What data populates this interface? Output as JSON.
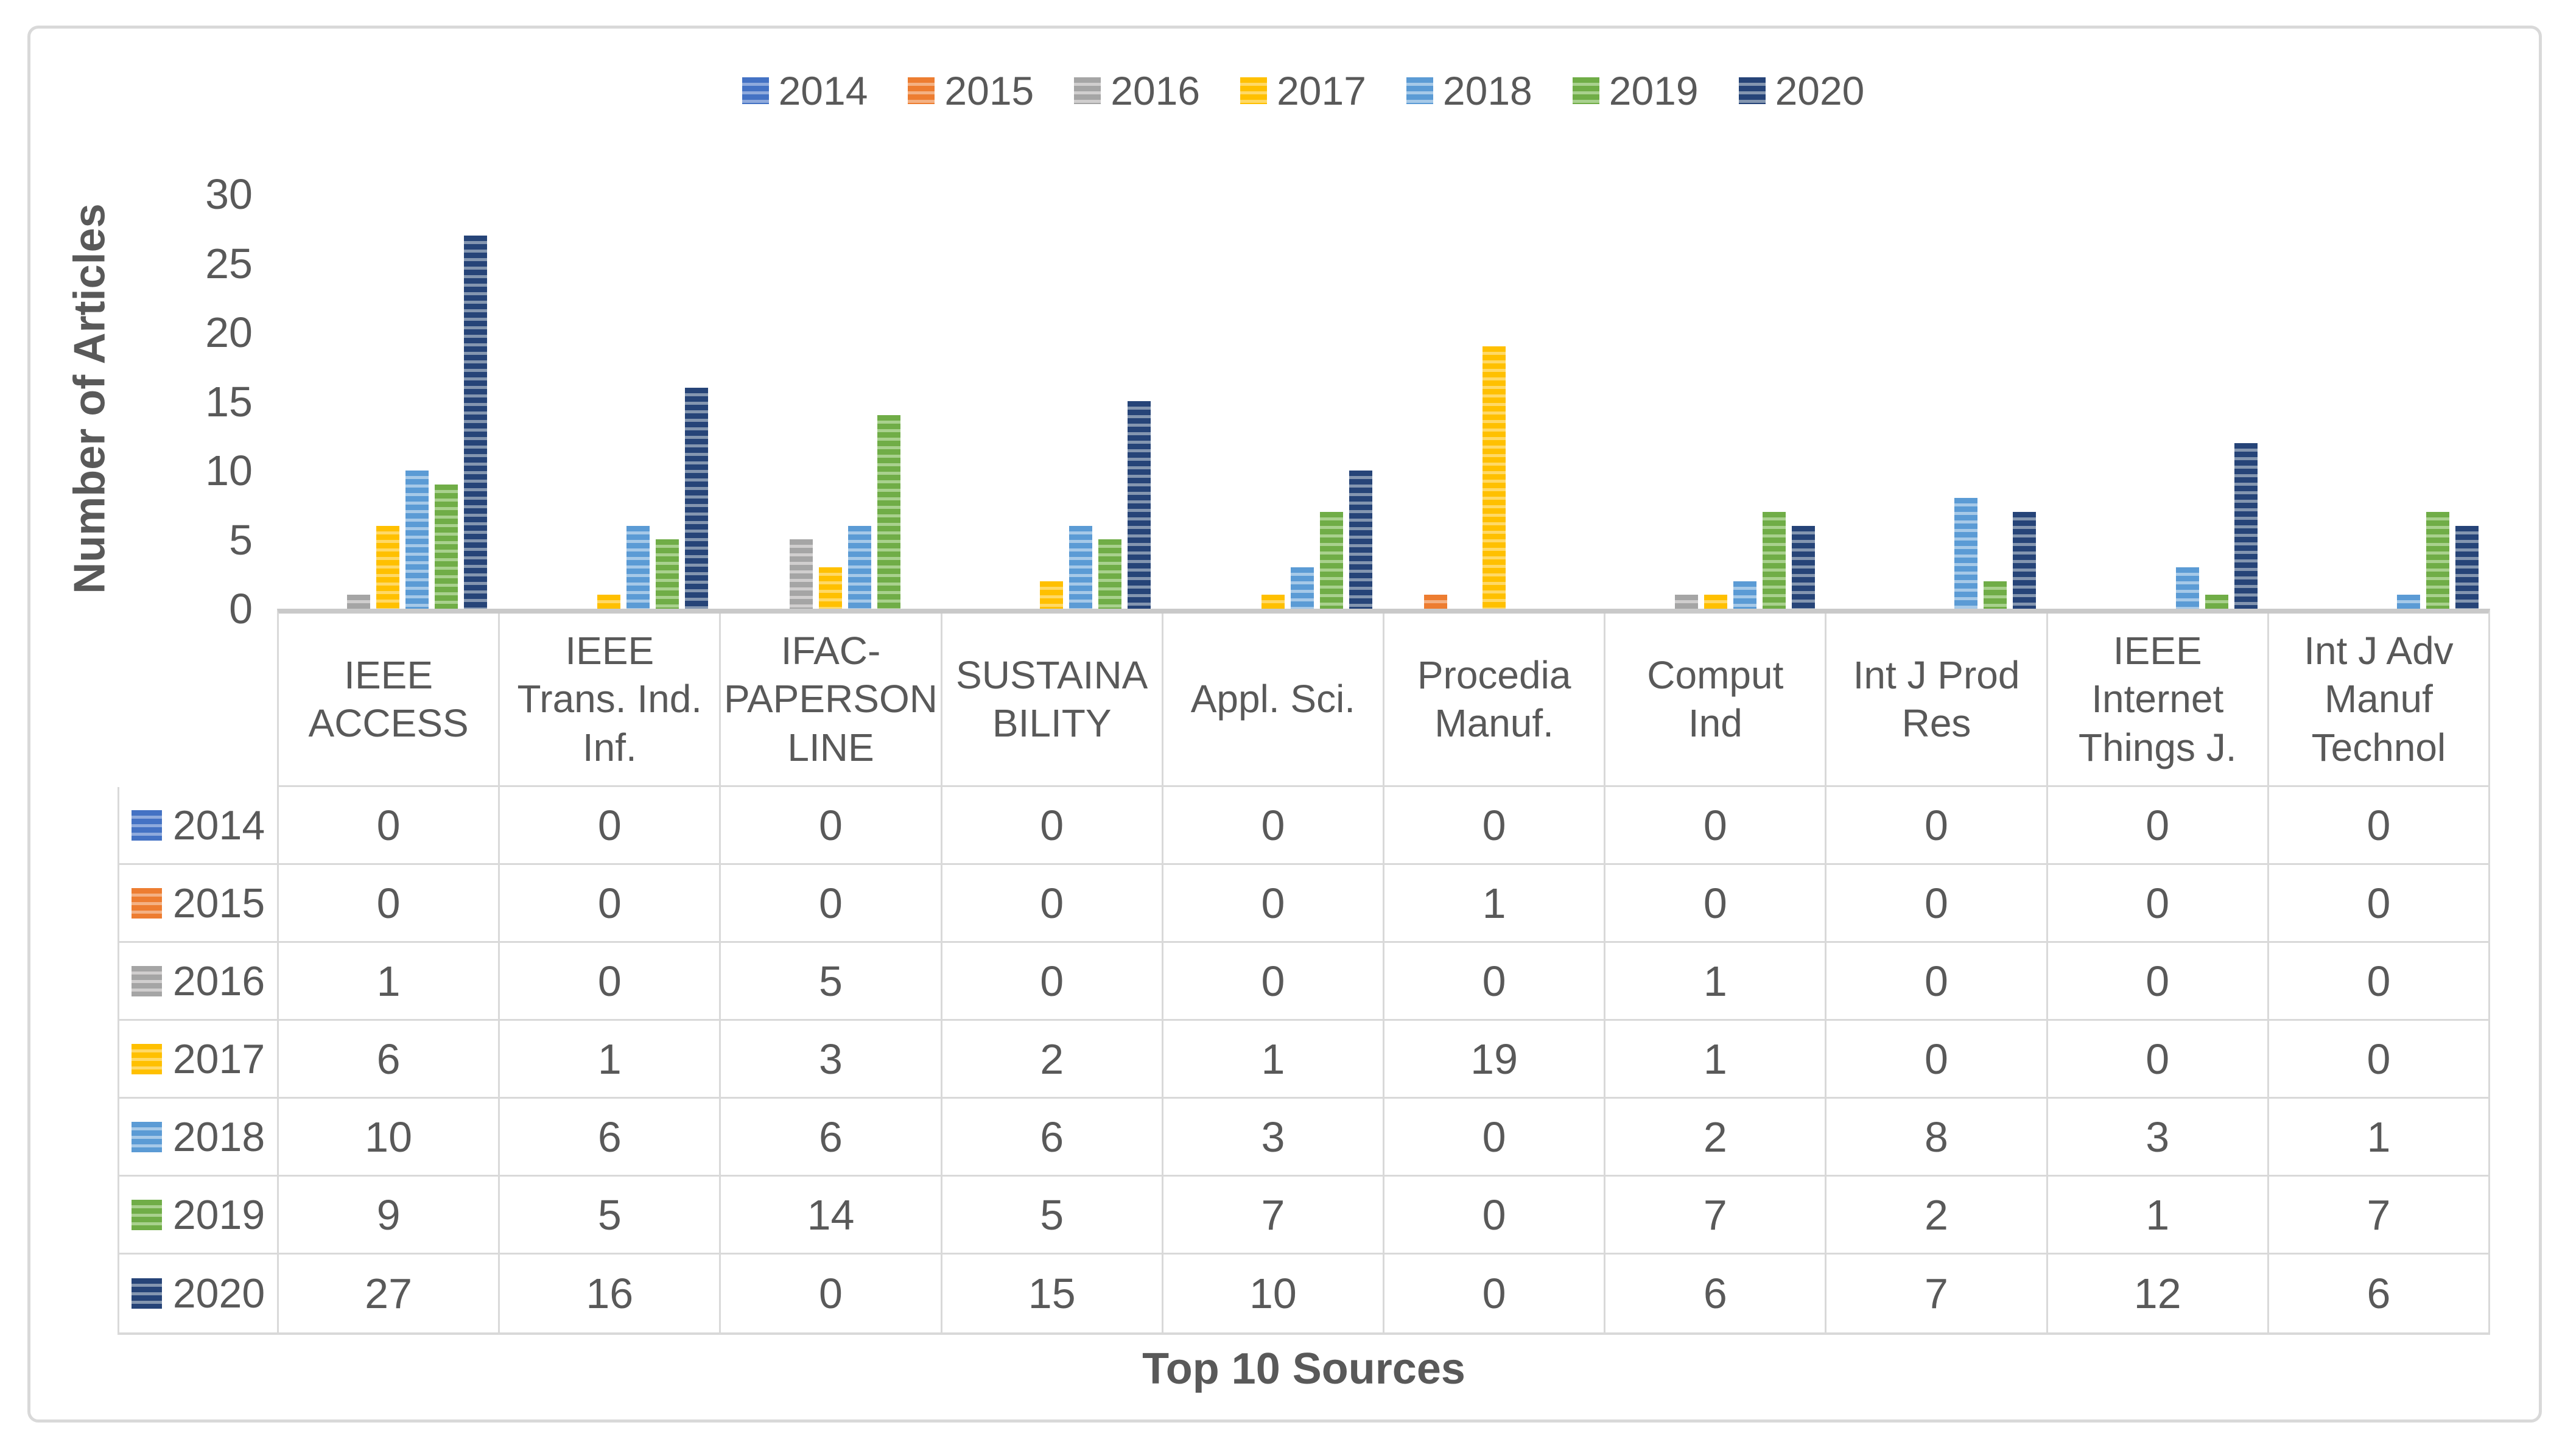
{
  "colors": {
    "text": "#595959",
    "cell_border": "#D9D9D9",
    "axis_line": "#C9C9C9",
    "frame_border": "#D9D9D9",
    "background": "#FFFFFF"
  },
  "y_axis": {
    "title": "Number of Articles",
    "ticks": [
      "0",
      "5",
      "10",
      "15",
      "20",
      "25",
      "30"
    ],
    "min": 0,
    "step": 5,
    "max": 30
  },
  "x_axis": {
    "title": "Top 10 Sources"
  },
  "categories_display": [
    "IEEE\nACCESS",
    "IEEE\nTrans. Ind.\nInf.",
    "IFAC-\nPAPERSON\nLINE",
    "SUSTAINA\nBILITY",
    "Appl. Sci.",
    "Procedia\nManuf.",
    "Comput\nInd",
    "Int J Prod\nRes",
    "IEEE\nInternet\nThings J.",
    "Int J Adv\nManuf\nTechnol"
  ],
  "chart_data": {
    "type": "bar",
    "title": "",
    "xlabel": "Top 10 Sources",
    "ylabel": "Number of Articles",
    "ylim": [
      0,
      30
    ],
    "grid": false,
    "legend_position": "top",
    "bar_fill_pattern": "horizontal-stripes",
    "categories": [
      "IEEE ACCESS",
      "IEEE Trans. Ind. Inf.",
      "IFAC-PAPERSONLINE",
      "SUSTAINABILITY",
      "Appl. Sci.",
      "Procedia Manuf.",
      "Comput Ind",
      "Int J Prod Res",
      "IEEE Internet Things J.",
      "Int J Adv Manuf Technol"
    ],
    "series": [
      {
        "name": "2014",
        "color": "#4472C4",
        "tint": "#8FAADC",
        "values": [
          0,
          0,
          0,
          0,
          0,
          0,
          0,
          0,
          0,
          0
        ]
      },
      {
        "name": "2015",
        "color": "#ED7D31",
        "tint": "#F4B183",
        "values": [
          0,
          0,
          0,
          0,
          0,
          1,
          0,
          0,
          0,
          0
        ]
      },
      {
        "name": "2016",
        "color": "#A5A5A5",
        "tint": "#D0CECE",
        "values": [
          1,
          0,
          5,
          0,
          0,
          0,
          1,
          0,
          0,
          0
        ]
      },
      {
        "name": "2017",
        "color": "#FFC000",
        "tint": "#FFD966",
        "values": [
          6,
          1,
          3,
          2,
          1,
          19,
          1,
          0,
          0,
          0
        ]
      },
      {
        "name": "2018",
        "color": "#5B9BD5",
        "tint": "#A6C9E8",
        "values": [
          10,
          6,
          6,
          6,
          3,
          0,
          2,
          8,
          3,
          1
        ]
      },
      {
        "name": "2019",
        "color": "#70AD47",
        "tint": "#A9D18E",
        "values": [
          9,
          5,
          14,
          5,
          7,
          0,
          7,
          2,
          1,
          7
        ]
      },
      {
        "name": "2020",
        "color": "#264478",
        "tint": "#8496B0",
        "values": [
          27,
          16,
          0,
          15,
          10,
          0,
          6,
          7,
          12,
          6
        ]
      }
    ]
  }
}
